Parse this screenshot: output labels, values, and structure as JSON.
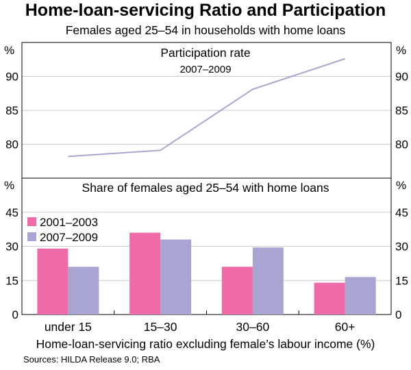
{
  "title": "Home-loan-servicing Ratio and Participation",
  "subtitle": "Females aged 25–54 in households with home loans",
  "xlabel": "Home-loan-servicing ratio excluding female’s labour income (%)",
  "source": "Sources: HILDA Release 9.0; RBA",
  "colors": {
    "series_2001_2003": "#ef6aa6",
    "series_2007_2009": "#a9a5d2",
    "line": "#a9a5d2",
    "grid": "#c8c8c8"
  },
  "chart_data": [
    {
      "type": "line",
      "title": "Participation rate",
      "subtitle": "2007–2009",
      "ylabel": "%",
      "ylim": [
        75,
        95
      ],
      "yticks": [
        80,
        85,
        90
      ],
      "categories": [
        "under 15",
        "15–30",
        "30–60",
        "60+"
      ],
      "series": [
        {
          "name": "2007–2009",
          "values": [
            78.2,
            79.1,
            88.1,
            92.6
          ]
        }
      ],
      "grid": true
    },
    {
      "type": "bar",
      "title": "Share of females aged 25–54 with home loans",
      "ylabel": "%",
      "ylim": [
        0,
        60
      ],
      "yticks": [
        0,
        15,
        30,
        45
      ],
      "categories": [
        "under 15",
        "15–30",
        "30–60",
        "60+"
      ],
      "series": [
        {
          "name": "2001–2003",
          "values": [
            29,
            36,
            21,
            14
          ]
        },
        {
          "name": "2007–2009",
          "values": [
            21,
            33,
            29.5,
            16.5
          ]
        }
      ],
      "legend": "top-left",
      "grid": true
    }
  ]
}
